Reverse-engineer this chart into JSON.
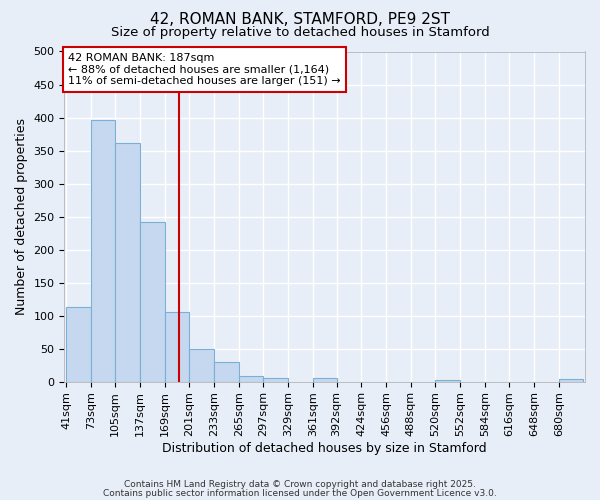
{
  "title": "42, ROMAN BANK, STAMFORD, PE9 2ST",
  "subtitle": "Size of property relative to detached houses in Stamford",
  "xlabel": "Distribution of detached houses by size in Stamford",
  "ylabel": "Number of detached properties",
  "categories": [
    "41sqm",
    "73sqm",
    "105sqm",
    "137sqm",
    "169sqm",
    "201sqm",
    "233sqm",
    "265sqm",
    "297sqm",
    "329sqm",
    "361sqm",
    "392sqm",
    "424sqm",
    "456sqm",
    "488sqm",
    "520sqm",
    "552sqm",
    "584sqm",
    "616sqm",
    "648sqm",
    "680sqm"
  ],
  "values": [
    113,
    397,
    362,
    242,
    105,
    50,
    30,
    8,
    6,
    0,
    6,
    0,
    0,
    0,
    0,
    2,
    0,
    0,
    0,
    0,
    4
  ],
  "bar_color": "#c5d8f0",
  "bar_edge_color": "#7bafd4",
  "background_color": "#e8eef8",
  "plot_bg_color": "#e8eef8",
  "grid_color": "#ffffff",
  "vline_x": 187,
  "vline_color": "#cc0000",
  "annotation_line1": "42 ROMAN BANK: 187sqm",
  "annotation_line2": "← 88% of detached houses are smaller (1,164)",
  "annotation_line3": "11% of semi-detached houses are larger (151) →",
  "annotation_box_color": "#ffffff",
  "annotation_box_edge": "#cc0000",
  "ylim": [
    0,
    500
  ],
  "yticks": [
    0,
    50,
    100,
    150,
    200,
    250,
    300,
    350,
    400,
    450,
    500
  ],
  "title_fontsize": 11,
  "subtitle_fontsize": 9.5,
  "xlabel_fontsize": 9,
  "ylabel_fontsize": 9,
  "tick_fontsize": 8,
  "annotation_fontsize": 8,
  "footer_text1": "Contains HM Land Registry data © Crown copyright and database right 2025.",
  "footer_text2": "Contains public sector information licensed under the Open Government Licence v3.0.",
  "footer_fontsize": 6.5,
  "bin_width": 32
}
